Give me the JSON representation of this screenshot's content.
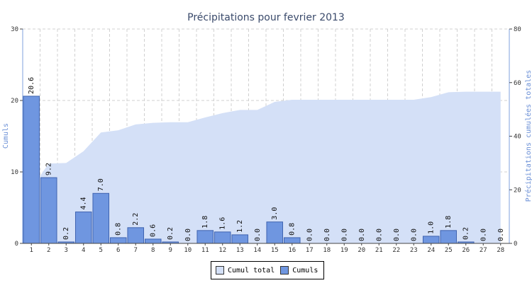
{
  "chart_data": {
    "type": "bar",
    "title": "Précipitations pour fevrier 2013",
    "ylabel_left": "Cumuls",
    "ylabel_right": "Précipitations cumulées totales",
    "ylim_left": [
      0,
      30
    ],
    "ylim_right": [
      0,
      80
    ],
    "yticks_left": [
      "0",
      "10",
      "20",
      "30"
    ],
    "yticks_right": [
      "0",
      "20",
      "40",
      "60",
      "80"
    ],
    "grid": true,
    "legend_position": "bottom-center",
    "categories": [
      "1",
      "2",
      "3",
      "4",
      "5",
      "6",
      "7",
      "8",
      "9",
      "10",
      "11",
      "12",
      "13",
      "14",
      "15",
      "16",
      "17",
      "18",
      "19",
      "20",
      "21",
      "22",
      "23",
      "24",
      "25",
      "26",
      "27",
      "28"
    ],
    "series": [
      {
        "name": "Cumuls",
        "type": "bar",
        "axis": "left",
        "color": "#6f96e0",
        "values": [
          20.6,
          9.2,
          0.2,
          4.4,
          7.0,
          0.8,
          2.2,
          0.6,
          0.2,
          0.0,
          1.8,
          1.6,
          1.2,
          0.0,
          3.0,
          0.8,
          0.0,
          0.0,
          0.0,
          0.0,
          0.0,
          0.0,
          0.0,
          1.0,
          1.8,
          0.2,
          0.0,
          0.0
        ],
        "labels": [
          "20.6",
          "9.2",
          "0.2",
          "4.4",
          "7.0",
          "0.8",
          "2.2",
          "0.6",
          "0.2",
          "0.0",
          "1.8",
          "1.6",
          "1.2",
          "0.0",
          "3.0",
          "0.8",
          "0.0",
          "0.0",
          "0.0",
          "0.0",
          "0.0",
          "0.0",
          "0.0",
          "1.0",
          "1.8",
          "0.2",
          "0.0",
          "0.0"
        ]
      },
      {
        "name": "Cumul total",
        "type": "area",
        "axis": "right",
        "color": "#d4e0f7",
        "values": [
          20.6,
          29.8,
          30.0,
          34.4,
          41.4,
          42.2,
          44.4,
          45.0,
          45.2,
          45.2,
          47.0,
          48.6,
          49.8,
          49.8,
          52.8,
          53.6,
          53.6,
          53.6,
          53.6,
          53.6,
          53.6,
          53.6,
          53.6,
          54.6,
          56.4,
          56.6,
          56.6,
          56.6
        ]
      }
    ]
  }
}
